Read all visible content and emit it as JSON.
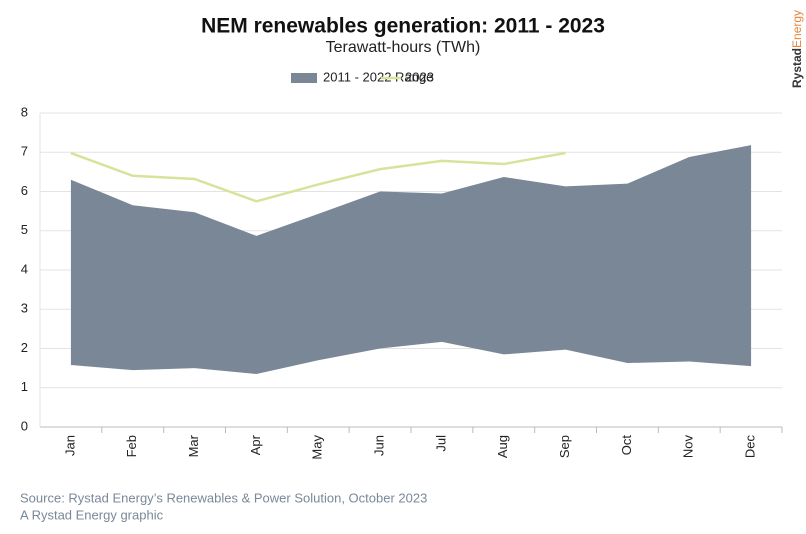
{
  "chart_data": {
    "type": "range_line",
    "title": "NEM renewables generation: 2011 - 2023",
    "subtitle": "Terawatt-hours (TWh)",
    "brand": [
      "Rystad",
      "Energy"
    ],
    "source": "Source: Rystad Energy’s Renewables & Power Solution, October 2023",
    "credit": "A Rystad Energy graphic",
    "categories": [
      "Jan",
      "Feb",
      "Mar",
      "Apr",
      "May",
      "Jun",
      "Jul",
      "Aug",
      "Sep",
      "Oct",
      "Nov",
      "Dec"
    ],
    "series": [
      {
        "name": "2011 - 2022 Range",
        "color": "#7a8797",
        "low": [
          1.58,
          1.45,
          1.5,
          1.35,
          1.7,
          2.0,
          2.17,
          1.85,
          1.97,
          1.63,
          1.67,
          1.55
        ],
        "high": [
          6.3,
          5.65,
          5.47,
          4.87,
          5.43,
          6.0,
          5.95,
          6.37,
          6.13,
          6.2,
          6.88,
          7.18
        ]
      },
      {
        "name": "2023",
        "color": "#d7e39a",
        "values": [
          6.98,
          6.4,
          6.32,
          5.75,
          6.18,
          6.57,
          6.78,
          6.7,
          6.98,
          null,
          null,
          null
        ]
      }
    ],
    "ylim": [
      0,
      8
    ],
    "yticks": [
      0,
      1,
      2,
      3,
      4,
      5,
      6,
      7,
      8
    ],
    "grid": true,
    "legend": "top"
  }
}
